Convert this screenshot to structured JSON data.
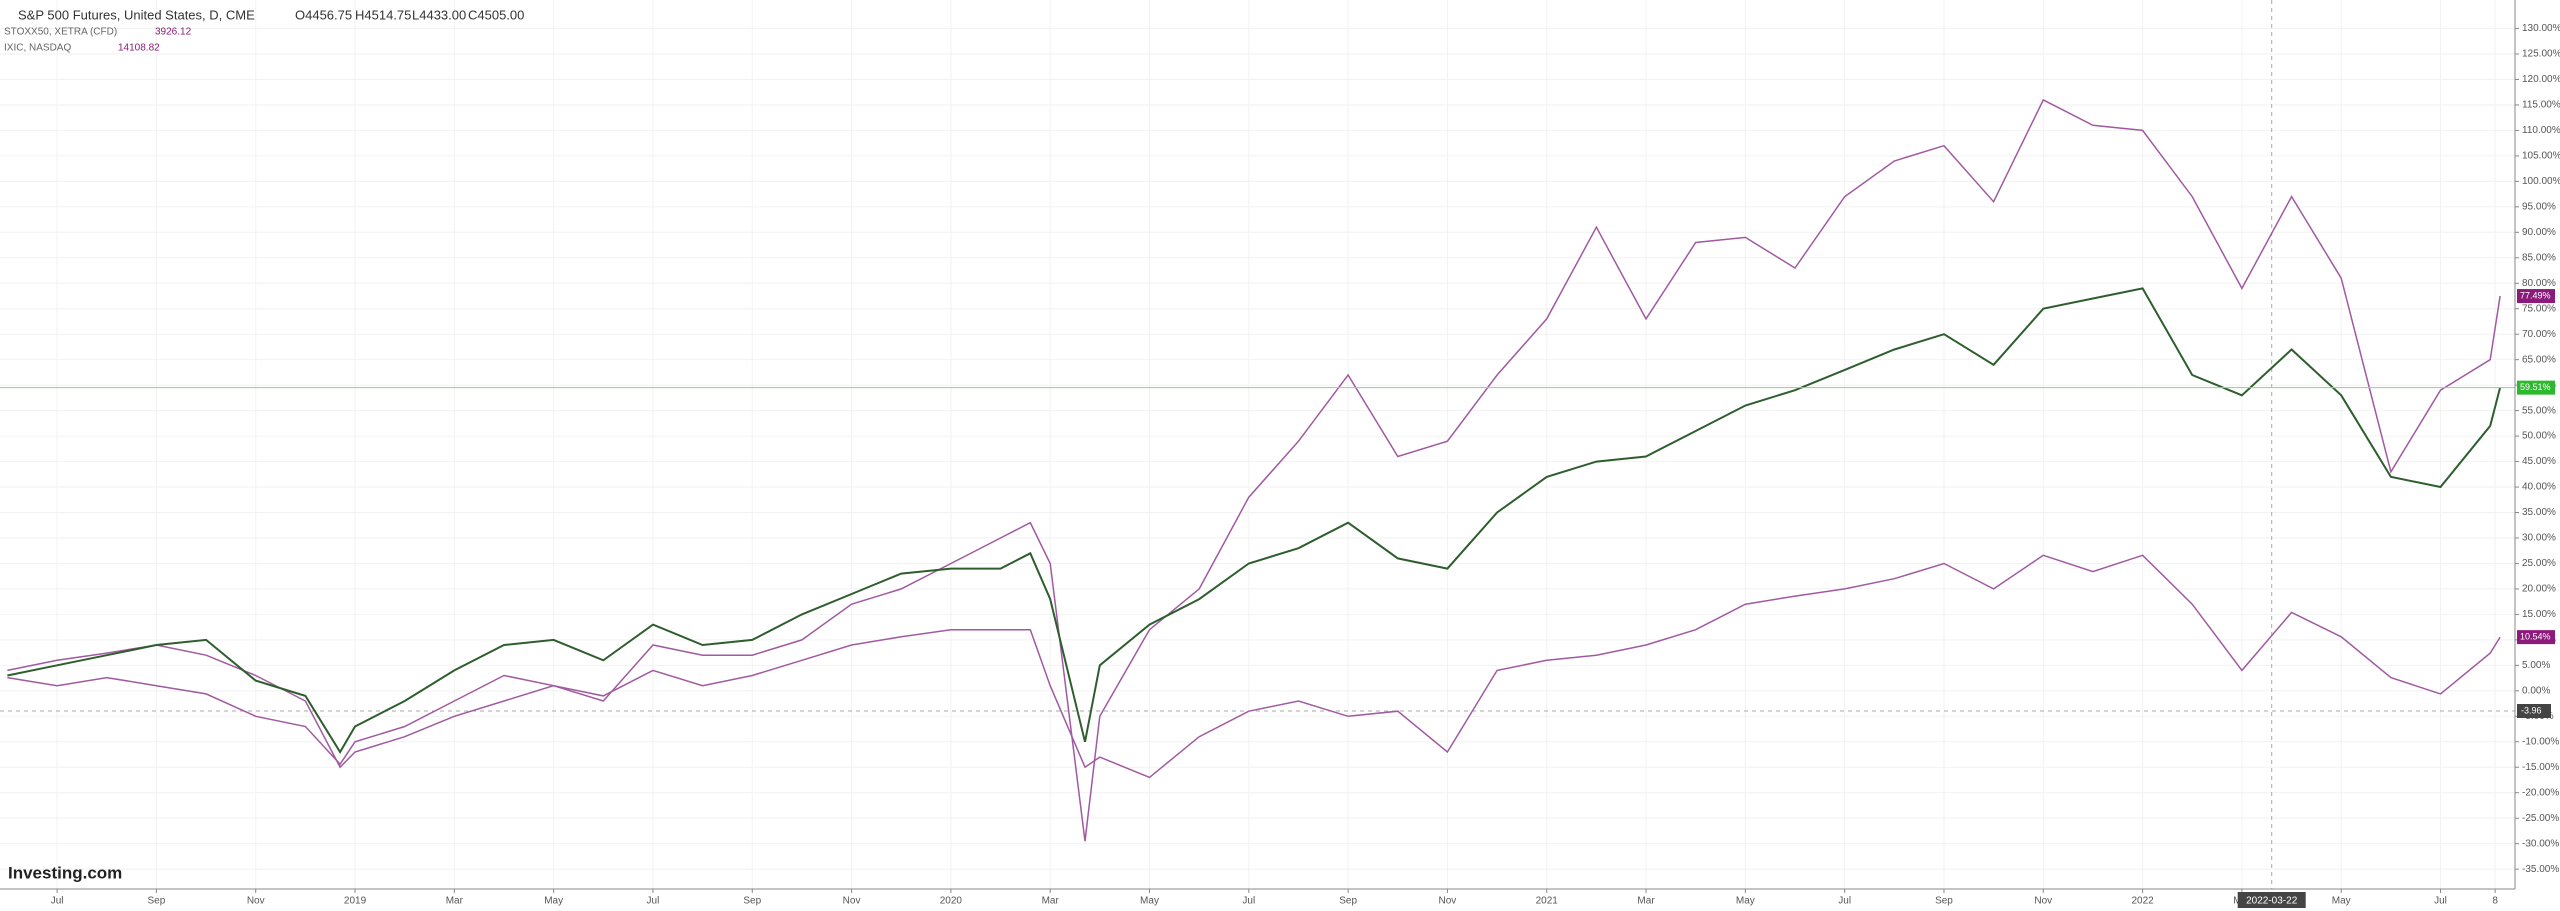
{
  "chart_data": {
    "type": "line",
    "header": {
      "symbol": "S&P 500 Futures, United States, D, CME",
      "open": "O4456.75",
      "high": "H4514.75",
      "low": "L4433.00",
      "close": "C4505.00"
    },
    "logo": "Investing.com",
    "x": [
      0,
      1,
      2,
      3,
      4,
      5,
      6,
      6.7,
      7,
      8,
      9,
      10,
      11,
      12,
      13,
      14,
      15,
      16,
      17,
      18,
      19,
      20,
      20.6,
      21,
      21.7,
      22,
      23,
      24,
      25,
      26,
      27,
      28,
      29,
      30,
      31,
      32,
      33,
      34,
      35,
      36,
      37,
      38,
      39,
      40,
      41,
      42,
      43,
      44,
      45,
      46,
      47,
      48,
      49,
      50,
      50.2
    ],
    "series": [
      {
        "name": "S&P 500 Futures, United States, D, CME",
        "color": "#2e5e2e",
        "label_color": "#2db82d",
        "last_label": "59.51%",
        "values": [
          3,
          5,
          7,
          9,
          10,
          2,
          -1,
          -12,
          -7,
          -2,
          4,
          9,
          10,
          6,
          13,
          9,
          10,
          15,
          19,
          23,
          24,
          24,
          27,
          18,
          -10,
          5,
          13,
          18,
          25,
          28,
          33,
          26,
          24,
          35,
          42,
          45,
          46,
          51,
          56,
          59,
          63,
          67,
          70,
          64,
          75,
          77,
          79,
          62,
          58,
          67,
          58,
          42,
          40,
          52,
          59.51
        ]
      },
      {
        "name": "STOXX50, XETRA (CFD)",
        "price": 3926.12,
        "color": "#a05aa0",
        "label_color": "#8b1a7a",
        "last_label": "10.54%",
        "values": [
          2.6,
          1,
          2.6,
          1,
          -0.6,
          -5,
          -7,
          -14.4,
          -10,
          -7,
          -2,
          3,
          1,
          -1,
          4,
          1,
          3,
          6,
          9,
          10.6,
          12,
          12,
          12,
          1,
          -15,
          -13,
          -17,
          -9,
          -4,
          -2,
          -5,
          -4,
          -12,
          4,
          6,
          7,
          9,
          12,
          17,
          18.6,
          20,
          22,
          25,
          20,
          26.6,
          23.4,
          26.6,
          17,
          4,
          15.4,
          10.6,
          2.6,
          -0.6,
          7.4,
          10.54
        ]
      },
      {
        "name": "IXIC, NASDAQ",
        "price": 14108.82,
        "color": "#a05aa0",
        "label_color": "#8b1a7a",
        "last_label": "77.49%",
        "values": [
          4,
          6,
          7.4,
          9,
          7,
          3,
          -2,
          -15,
          -12,
          -9,
          -5,
          -2,
          1,
          -2,
          9,
          7,
          7,
          10,
          17,
          20,
          25,
          30,
          33,
          25,
          -29.5,
          -5,
          12,
          20,
          38,
          49,
          62,
          46,
          49,
          62,
          73,
          91,
          73,
          88,
          89,
          83,
          97,
          104,
          107,
          96,
          116,
          111,
          110,
          97,
          79,
          97,
          81,
          43,
          59,
          65,
          77.49
        ]
      }
    ],
    "crosshair": {
      "x": 45.6,
      "x_label": "2022-03-22",
      "y": -3.96,
      "y_label": "-3.96"
    },
    "xlim": [
      -0.15,
      50.5
    ],
    "xticks": [
      {
        "value": 1,
        "label": "Jul"
      },
      {
        "value": 3,
        "label": "Sep"
      },
      {
        "value": 5,
        "label": "Nov"
      },
      {
        "value": 7,
        "label": "2019"
      },
      {
        "value": 9,
        "label": "Mar"
      },
      {
        "value": 11,
        "label": "May"
      },
      {
        "value": 13,
        "label": "Jul"
      },
      {
        "value": 15,
        "label": "Sep"
      },
      {
        "value": 17,
        "label": "Nov"
      },
      {
        "value": 19,
        "label": "2020"
      },
      {
        "value": 21,
        "label": "Mar"
      },
      {
        "value": 23,
        "label": "May"
      },
      {
        "value": 25,
        "label": "Jul"
      },
      {
        "value": 27,
        "label": "Sep"
      },
      {
        "value": 29,
        "label": "Nov"
      },
      {
        "value": 31,
        "label": "2021"
      },
      {
        "value": 33,
        "label": "Mar"
      },
      {
        "value": 35,
        "label": "May"
      },
      {
        "value": 37,
        "label": "Jul"
      },
      {
        "value": 39,
        "label": "Sep"
      },
      {
        "value": 41,
        "label": "Nov"
      },
      {
        "value": 43,
        "label": "2022"
      },
      {
        "value": 45,
        "label": "Mar"
      },
      {
        "value": 47,
        "label": "May"
      },
      {
        "value": 49,
        "label": "Jul"
      },
      {
        "value": 50.1,
        "label": "8"
      }
    ],
    "ylim": [
      -38.9,
      135.6
    ],
    "yticks": [
      {
        "value": -35,
        "label": "-35.00%"
      },
      {
        "value": -30,
        "label": "-30.00%"
      },
      {
        "value": -25,
        "label": "-25.00%"
      },
      {
        "value": -20,
        "label": "-20.00%"
      },
      {
        "value": -15,
        "label": "-15.00%"
      },
      {
        "value": -10,
        "label": "-10.00%"
      },
      {
        "value": -5,
        "label": "-5.00%"
      },
      {
        "value": 0,
        "label": "0.00%"
      },
      {
        "value": 5,
        "label": "5.00%"
      },
      {
        "value": 10,
        "label": "10.00%"
      },
      {
        "value": 15,
        "label": "15.00%"
      },
      {
        "value": 20,
        "label": "20.00%"
      },
      {
        "value": 25,
        "label": "25.00%"
      },
      {
        "value": 30,
        "label": "30.00%"
      },
      {
        "value": 35,
        "label": "35.00%"
      },
      {
        "value": 40,
        "label": "40.00%"
      },
      {
        "value": 45,
        "label": "45.00%"
      },
      {
        "value": 50,
        "label": "50.00%"
      },
      {
        "value": 55,
        "label": "55.00%"
      },
      {
        "value": 60,
        "label": "60.00%"
      },
      {
        "value": 65,
        "label": "65.00%"
      },
      {
        "value": 70,
        "label": "70.00%"
      },
      {
        "value": 75,
        "label": "75.00%"
      },
      {
        "value": 80,
        "label": "80.00%"
      },
      {
        "value": 85,
        "label": "85.00%"
      },
      {
        "value": 90,
        "label": "90.00%"
      },
      {
        "value": 95,
        "label": "95.00%"
      },
      {
        "value": 100,
        "label": "100.00%"
      },
      {
        "value": 105,
        "label": "105.00%"
      },
      {
        "value": 110,
        "label": "110.00%"
      },
      {
        "value": 115,
        "label": "115.00%"
      },
      {
        "value": 120,
        "label": "120.00%"
      },
      {
        "value": 125,
        "label": "125.00%"
      },
      {
        "value": 130,
        "label": "130.00%"
      }
    ],
    "grid": true
  }
}
